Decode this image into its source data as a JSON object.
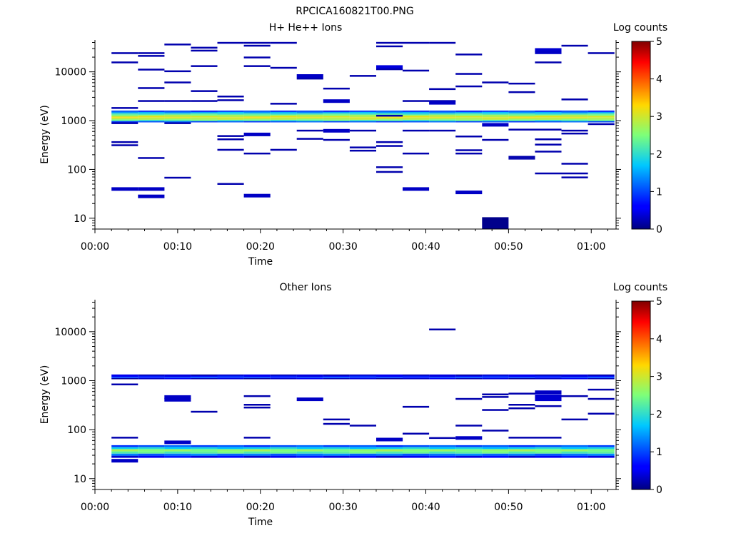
{
  "figure": {
    "title": "RPCICA160821T00.PNG"
  },
  "colorbar": {
    "label": "Log counts",
    "ticks": [
      "0",
      "1",
      "2",
      "3",
      "4",
      "5"
    ]
  },
  "chart_data": [
    {
      "type": "heatmap",
      "title": "H+ He++ Ions",
      "xlabel": "Time",
      "ylabel": "Energy (eV)",
      "xlim_min": [
        0,
        63
      ],
      "ylim_eV": [
        6,
        45000
      ],
      "yscale": "log",
      "x_tick_labels": [
        "00:00",
        "00:10",
        "00:20",
        "00:30",
        "00:40",
        "00:50",
        "01:00"
      ],
      "x_tick_minutes": [
        0,
        10,
        20,
        30,
        40,
        50,
        60
      ],
      "y_tick_labels": [
        "10",
        "100",
        "1000",
        "10000"
      ],
      "y_tick_values": [
        10,
        100,
        1000,
        10000
      ],
      "colorbar_range": [
        0,
        5
      ],
      "columns_start_min": [
        2,
        5.2,
        8.4,
        11.6,
        14.8,
        18,
        21.2,
        24.4,
        27.6,
        30.8,
        34,
        37.2,
        40.4,
        43.6,
        46.8,
        50,
        53.2,
        56.4,
        59.6
      ],
      "column_width_min": 3.2,
      "band": {
        "description": "persistent high-count band near 1000 eV",
        "energies": [
          950,
          1010,
          1070,
          1140,
          1210,
          1290,
          1370,
          1460,
          1560
        ],
        "log_counts": [
          1.0,
          2.2,
          2.7,
          3.1,
          3.0,
          2.6,
          2.1,
          1.5,
          0.9
        ]
      },
      "hits": [
        {
          "t": 2,
          "e": 24000,
          "v": 0.2
        },
        {
          "t": 2,
          "e": 15500,
          "v": 0.2
        },
        {
          "t": 2,
          "e": 1800,
          "v": 0.2
        },
        {
          "t": 2,
          "e": 880,
          "v": 0.2
        },
        {
          "t": 2,
          "e": 360,
          "v": 0.2
        },
        {
          "t": 2,
          "e": 310,
          "v": 0.2
        },
        {
          "t": 2,
          "e": 41,
          "v": 0.3
        },
        {
          "t": 5.2,
          "e": 41,
          "v": 0.3
        },
        {
          "t": 5.2,
          "e": 29,
          "v": 0.3
        },
        {
          "t": 5.2,
          "e": 24000,
          "v": 0.2
        },
        {
          "t": 5.2,
          "e": 21000,
          "v": 0.2
        },
        {
          "t": 5.2,
          "e": 11000,
          "v": 0.2
        },
        {
          "t": 5.2,
          "e": 4600,
          "v": 0.2
        },
        {
          "t": 5.2,
          "e": 2500,
          "v": 0.2
        },
        {
          "t": 5.2,
          "e": 170,
          "v": 0.2
        },
        {
          "t": 8.4,
          "e": 36000,
          "v": 0.2
        },
        {
          "t": 8.4,
          "e": 10200,
          "v": 0.2
        },
        {
          "t": 8.4,
          "e": 6000,
          "v": 0.2
        },
        {
          "t": 8.4,
          "e": 2500,
          "v": 0.2
        },
        {
          "t": 8.4,
          "e": 880,
          "v": 0.2
        },
        {
          "t": 8.4,
          "e": 67,
          "v": 0.2
        },
        {
          "t": 11.6,
          "e": 31000,
          "v": 0.2
        },
        {
          "t": 11.6,
          "e": 27000,
          "v": 0.2
        },
        {
          "t": 11.6,
          "e": 13000,
          "v": 0.2
        },
        {
          "t": 11.6,
          "e": 4000,
          "v": 0.2
        },
        {
          "t": 11.6,
          "e": 2500,
          "v": 0.2
        },
        {
          "t": 14.8,
          "e": 39000,
          "v": 0.2
        },
        {
          "t": 14.8,
          "e": 3100,
          "v": 0.2
        },
        {
          "t": 14.8,
          "e": 2600,
          "v": 0.2
        },
        {
          "t": 14.8,
          "e": 480,
          "v": 0.2
        },
        {
          "t": 14.8,
          "e": 410,
          "v": 0.2
        },
        {
          "t": 14.8,
          "e": 250,
          "v": 0.2
        },
        {
          "t": 14.8,
          "e": 50,
          "v": 0.2
        },
        {
          "t": 18,
          "e": 39000,
          "v": 0.2
        },
        {
          "t": 18,
          "e": 34000,
          "v": 0.2
        },
        {
          "t": 18,
          "e": 19500,
          "v": 0.2
        },
        {
          "t": 18,
          "e": 13000,
          "v": 0.2
        },
        {
          "t": 18,
          "e": 540,
          "v": 0.3
        },
        {
          "t": 18,
          "e": 210,
          "v": 0.2
        },
        {
          "t": 18,
          "e": 30,
          "v": 0.3
        },
        {
          "t": 21.2,
          "e": 39000,
          "v": 0.2
        },
        {
          "t": 21.2,
          "e": 12000,
          "v": 0.2
        },
        {
          "t": 21.2,
          "e": 2200,
          "v": 0.2
        },
        {
          "t": 21.2,
          "e": 250,
          "v": 0.2
        },
        {
          "t": 24.4,
          "e": 8500,
          "v": 0.3
        },
        {
          "t": 24.4,
          "e": 7200,
          "v": 0.2
        },
        {
          "t": 24.4,
          "e": 620,
          "v": 0.2
        },
        {
          "t": 24.4,
          "e": 420,
          "v": 0.2
        },
        {
          "t": 27.6,
          "e": 4500,
          "v": 0.2
        },
        {
          "t": 27.6,
          "e": 2600,
          "v": 0.3
        },
        {
          "t": 27.6,
          "e": 640,
          "v": 0.3
        },
        {
          "t": 27.6,
          "e": 400,
          "v": 0.2
        },
        {
          "t": 30.8,
          "e": 8200,
          "v": 0.2
        },
        {
          "t": 30.8,
          "e": 620,
          "v": 0.2
        },
        {
          "t": 30.8,
          "e": 280,
          "v": 0.2
        },
        {
          "t": 30.8,
          "e": 240,
          "v": 0.2
        },
        {
          "t": 34,
          "e": 39000,
          "v": 0.2
        },
        {
          "t": 34,
          "e": 33000,
          "v": 0.2
        },
        {
          "t": 34,
          "e": 13000,
          "v": 0.4
        },
        {
          "t": 34,
          "e": 11200,
          "v": 0.2
        },
        {
          "t": 34,
          "e": 1250,
          "v": 0.2
        },
        {
          "t": 34,
          "e": 360,
          "v": 0.2
        },
        {
          "t": 34,
          "e": 300,
          "v": 0.2
        },
        {
          "t": 34,
          "e": 110,
          "v": 0.2
        },
        {
          "t": 34,
          "e": 88,
          "v": 0.2
        },
        {
          "t": 37.2,
          "e": 39000,
          "v": 0.2
        },
        {
          "t": 37.2,
          "e": 10500,
          "v": 0.2
        },
        {
          "t": 37.2,
          "e": 2500,
          "v": 0.2
        },
        {
          "t": 37.2,
          "e": 620,
          "v": 0.2
        },
        {
          "t": 37.2,
          "e": 210,
          "v": 0.2
        },
        {
          "t": 37.2,
          "e": 41,
          "v": 0.3
        },
        {
          "t": 40.4,
          "e": 39000,
          "v": 0.2
        },
        {
          "t": 40.4,
          "e": 2500,
          "v": 0.2
        },
        {
          "t": 40.4,
          "e": 620,
          "v": 0.2
        },
        {
          "t": 40.4,
          "e": 2400,
          "v": 0.3
        },
        {
          "t": 40.4,
          "e": 4400,
          "v": 0.2
        },
        {
          "t": 43.6,
          "e": 22500,
          "v": 0.2
        },
        {
          "t": 43.6,
          "e": 9000,
          "v": 0.2
        },
        {
          "t": 43.6,
          "e": 5000,
          "v": 0.2
        },
        {
          "t": 43.6,
          "e": 470,
          "v": 0.2
        },
        {
          "t": 43.6,
          "e": 245,
          "v": 0.2
        },
        {
          "t": 43.6,
          "e": 210,
          "v": 0.2
        },
        {
          "t": 43.6,
          "e": 35,
          "v": 0.3
        },
        {
          "t": 46.8,
          "e": 6000,
          "v": 0.2
        },
        {
          "t": 46.8,
          "e": 850,
          "v": 0.3
        },
        {
          "t": 46.8,
          "e": 400,
          "v": 0.2
        },
        {
          "t": 50,
          "e": 5700,
          "v": 0.2
        },
        {
          "t": 50,
          "e": 3800,
          "v": 0.2
        },
        {
          "t": 50,
          "e": 650,
          "v": 0.2
        },
        {
          "t": 50,
          "e": 180,
          "v": 0.2
        },
        {
          "t": 50,
          "e": 165,
          "v": 0.2
        },
        {
          "t": 53.2,
          "e": 29000,
          "v": 0.35
        },
        {
          "t": 53.2,
          "e": 26000,
          "v": 0.3
        },
        {
          "t": 53.2,
          "e": 15500,
          "v": 0.2
        },
        {
          "t": 53.2,
          "e": 650,
          "v": 0.2
        },
        {
          "t": 53.2,
          "e": 410,
          "v": 0.2
        },
        {
          "t": 53.2,
          "e": 320,
          "v": 0.2
        },
        {
          "t": 53.2,
          "e": 230,
          "v": 0.2
        },
        {
          "t": 53.2,
          "e": 82,
          "v": 0.2
        },
        {
          "t": 56.4,
          "e": 34000,
          "v": 0.2
        },
        {
          "t": 56.4,
          "e": 2700,
          "v": 0.2
        },
        {
          "t": 56.4,
          "e": 620,
          "v": 0.2
        },
        {
          "t": 56.4,
          "e": 540,
          "v": 0.2
        },
        {
          "t": 56.4,
          "e": 130,
          "v": 0.2
        },
        {
          "t": 56.4,
          "e": 82,
          "v": 0.2
        },
        {
          "t": 56.4,
          "e": 68,
          "v": 0.2
        },
        {
          "t": 59.6,
          "e": 24000,
          "v": 0.2
        },
        {
          "t": 59.6,
          "e": 840,
          "v": 0.2
        }
      ],
      "blocks": [
        {
          "t0": 46.8,
          "t1": 50,
          "e0": 6,
          "e1": 10.5,
          "v": 0.05
        }
      ]
    },
    {
      "type": "heatmap",
      "title": "Other Ions",
      "xlabel": "Time",
      "ylabel": "Energy (eV)",
      "xlim_min": [
        0,
        63
      ],
      "ylim_eV": [
        6,
        45000
      ],
      "yscale": "log",
      "x_tick_labels": [
        "00:00",
        "00:10",
        "00:20",
        "00:30",
        "00:40",
        "00:50",
        "01:00"
      ],
      "x_tick_minutes": [
        0,
        10,
        20,
        30,
        40,
        50,
        60
      ],
      "y_tick_labels": [
        "10",
        "100",
        "1000",
        "10000"
      ],
      "y_tick_values": [
        10,
        100,
        1000,
        10000
      ],
      "colorbar_range": [
        0,
        5
      ],
      "columns_start_min": [
        2,
        5.2,
        8.4,
        11.6,
        14.8,
        18,
        21.2,
        24.4,
        27.6,
        30.8,
        34,
        37.2,
        40.4,
        43.6,
        46.8,
        50,
        53.2,
        56.4,
        59.6
      ],
      "column_width_min": 3.2,
      "band": {
        "description": "persistent high-count band near 35 eV",
        "energies": [
          28,
          31,
          34,
          38,
          42,
          46
        ],
        "log_counts": [
          0.5,
          1.2,
          2.3,
          2.6,
          1.8,
          1.0
        ]
      },
      "band2": {
        "description": "weaker band near 1200 eV",
        "energies": [
          1100,
          1160,
          1230,
          1300
        ],
        "log_counts": [
          0.3,
          0.9,
          0.6,
          0.3
        ]
      },
      "hits": [
        {
          "t": 2,
          "e": 830,
          "v": 0.2
        },
        {
          "t": 2,
          "e": 68,
          "v": 0.2
        },
        {
          "t": 2,
          "e": 24,
          "v": 0.3
        },
        {
          "t": 8.4,
          "e": 480,
          "v": 0.3
        },
        {
          "t": 8.4,
          "e": 420,
          "v": 0.3
        },
        {
          "t": 8.4,
          "e": 57,
          "v": 0.3
        },
        {
          "t": 11.6,
          "e": 230,
          "v": 0.2
        },
        {
          "t": 18,
          "e": 480,
          "v": 0.2
        },
        {
          "t": 18,
          "e": 320,
          "v": 0.2
        },
        {
          "t": 18,
          "e": 280,
          "v": 0.2
        },
        {
          "t": 18,
          "e": 68,
          "v": 0.2
        },
        {
          "t": 24.4,
          "e": 430,
          "v": 0.3
        },
        {
          "t": 27.6,
          "e": 160,
          "v": 0.2
        },
        {
          "t": 27.6,
          "e": 130,
          "v": 0.2
        },
        {
          "t": 30.8,
          "e": 120,
          "v": 0.2
        },
        {
          "t": 34,
          "e": 65,
          "v": 0.3
        },
        {
          "t": 37.2,
          "e": 290,
          "v": 0.2
        },
        {
          "t": 37.2,
          "e": 82,
          "v": 0.2
        },
        {
          "t": 40.4,
          "e": 11000,
          "v": 0.2
        },
        {
          "t": 40.4,
          "e": 67,
          "v": 0.2
        },
        {
          "t": 43.6,
          "e": 420,
          "v": 0.2
        },
        {
          "t": 43.6,
          "e": 120,
          "v": 0.2
        },
        {
          "t": 43.6,
          "e": 70,
          "v": 0.3
        },
        {
          "t": 46.8,
          "e": 520,
          "v": 0.2
        },
        {
          "t": 46.8,
          "e": 460,
          "v": 0.2
        },
        {
          "t": 46.8,
          "e": 250,
          "v": 0.2
        },
        {
          "t": 46.8,
          "e": 95,
          "v": 0.2
        },
        {
          "t": 50,
          "e": 540,
          "v": 0.2
        },
        {
          "t": 50,
          "e": 320,
          "v": 0.2
        },
        {
          "t": 50,
          "e": 270,
          "v": 0.2
        },
        {
          "t": 50,
          "e": 68,
          "v": 0.2
        },
        {
          "t": 53.2,
          "e": 600,
          "v": 0.3
        },
        {
          "t": 53.2,
          "e": 500,
          "v": 0.35
        },
        {
          "t": 53.2,
          "e": 430,
          "v": 0.35
        },
        {
          "t": 53.2,
          "e": 300,
          "v": 0.2
        },
        {
          "t": 53.2,
          "e": 68,
          "v": 0.2
        },
        {
          "t": 56.4,
          "e": 480,
          "v": 0.2
        },
        {
          "t": 56.4,
          "e": 160,
          "v": 0.2
        },
        {
          "t": 59.6,
          "e": 650,
          "v": 0.2
        },
        {
          "t": 59.6,
          "e": 420,
          "v": 0.2
        },
        {
          "t": 59.6,
          "e": 210,
          "v": 0.2
        }
      ],
      "blocks": []
    }
  ]
}
